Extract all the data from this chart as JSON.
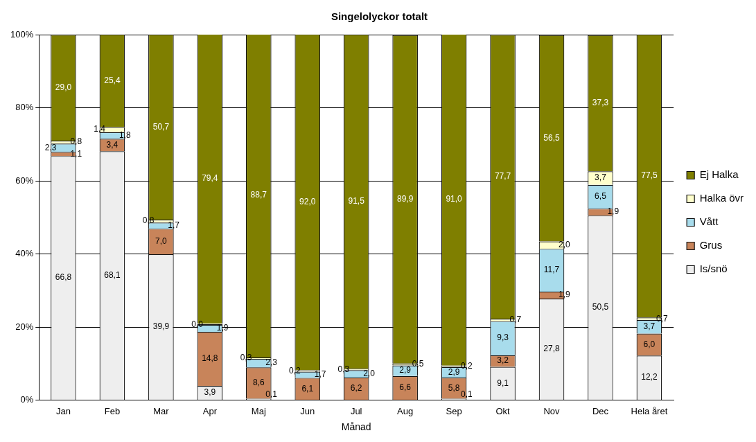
{
  "chart_data": {
    "type": "bar",
    "title": "Singelolyckor totalt",
    "xlabel": "Månad",
    "categories": [
      "Jan",
      "Feb",
      "Mar",
      "Apr",
      "Maj",
      "Jun",
      "Jul",
      "Aug",
      "Sep",
      "Okt",
      "Nov",
      "Dec",
      "Hela året"
    ],
    "stacked": true,
    "ylim": [
      0,
      100
    ],
    "yticks": [
      {
        "value": 0,
        "label": "0%"
      },
      {
        "value": 20,
        "label": "20%"
      },
      {
        "value": 40,
        "label": "40%"
      },
      {
        "value": 60,
        "label": "60%"
      },
      {
        "value": 80,
        "label": "80%"
      },
      {
        "value": 100,
        "label": "100%"
      }
    ],
    "grid": "y",
    "legend": "right",
    "series": [
      {
        "name": "Is/snö",
        "color": "#eeeeee",
        "values": [
          66.8,
          68.1,
          39.9,
          3.9,
          0.1,
          null,
          null,
          null,
          0.1,
          9.1,
          27.8,
          50.5,
          12.2
        ],
        "value_labels": [
          "66,8",
          "68,1",
          "39,9",
          "3,9",
          "0,1",
          null,
          null,
          null,
          "0,1",
          "9,1",
          "27,8",
          "50,5",
          "12,2"
        ]
      },
      {
        "name": "Grus",
        "color": "#c8845a",
        "values": [
          1.1,
          3.4,
          7.0,
          14.8,
          8.6,
          6.1,
          6.2,
          6.6,
          5.8,
          3.2,
          1.9,
          1.9,
          6.0
        ],
        "value_labels": [
          "1,1",
          "3,4",
          "7,0",
          "14,8",
          "8,6",
          "6,1",
          "6,2",
          "6,6",
          "5,8",
          "3,2",
          "1,9",
          "1,9",
          "6,0"
        ]
      },
      {
        "name": "Vått",
        "color": "#a8dcec",
        "values": [
          2.3,
          1.8,
          1.7,
          1.9,
          2.3,
          1.7,
          2.0,
          2.9,
          2.9,
          9.3,
          11.7,
          6.5,
          3.7
        ],
        "value_labels": [
          "2,3",
          "1,8",
          "1,7",
          "1,9",
          "2,3",
          "1,7",
          "2,0",
          "2,9",
          "2,9",
          "9,3",
          "11,7",
          "6,5",
          "3,7"
        ]
      },
      {
        "name": "Halka övr",
        "color": "#ffffcc",
        "values": [
          0.8,
          1.4,
          0.8,
          0.0,
          0.3,
          0.2,
          0.3,
          0.5,
          0.2,
          0.7,
          2.0,
          3.7,
          0.7
        ],
        "value_labels": [
          "0,8",
          "1,4",
          "0,8",
          "0,0",
          "0,3",
          "0,2",
          "0,3",
          "0,5",
          "0,2",
          "0,7",
          "2,0",
          "3,7",
          "0,7"
        ]
      },
      {
        "name": "Ej Halka",
        "color": "#7f7f00",
        "values": [
          29.0,
          25.4,
          50.7,
          79.4,
          88.7,
          92.0,
          91.5,
          89.9,
          91.0,
          77.7,
          56.5,
          37.3,
          77.5
        ],
        "value_labels": [
          "29,0",
          "25,4",
          "50,7",
          "79,4",
          "88,7",
          "92,0",
          "91,5",
          "89,9",
          "91,0",
          "77,7",
          "56,5",
          "37,3",
          "77,5"
        ]
      }
    ]
  }
}
